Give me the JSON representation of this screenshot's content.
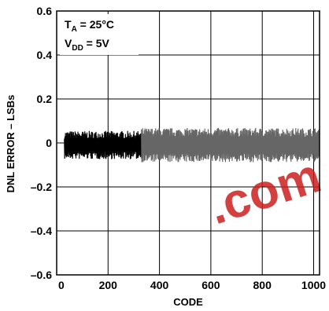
{
  "chart_data": {
    "type": "line",
    "xlabel": "CODE",
    "ylabel": "DNL ERROR – LSBs",
    "xlim": [
      0,
      1023
    ],
    "ylim": [
      -0.6,
      0.6
    ],
    "x_ticks": [
      0,
      200,
      400,
      600,
      800,
      1000
    ],
    "x_tick_labels": [
      "0",
      "200",
      "400",
      "600",
      "800",
      "1000"
    ],
    "y_ticks": [
      0.6,
      0.4,
      0.2,
      0,
      -0.2,
      -0.4,
      -0.6
    ],
    "y_tick_labels": [
      "0.6",
      "0.4",
      "0.2",
      "0",
      "–0.2",
      "–0.4",
      "–0.6"
    ],
    "grid": true,
    "annotations": [
      {
        "base": "T",
        "sub": "A",
        "rest": " = 25°C"
      },
      {
        "base": "V",
        "sub": "DD",
        "rest": " = 5V"
      }
    ],
    "watermark": ".com",
    "series": [
      {
        "color": "#000000",
        "codes": [
          30,
          330
        ],
        "upper_mean": 0.03,
        "lower_mean": -0.05,
        "amplitude": 0.035
      },
      {
        "color": "#666666",
        "codes": [
          330,
          1023
        ],
        "upper_mean": 0.04,
        "lower_mean": -0.06,
        "amplitude": 0.04
      }
    ]
  }
}
